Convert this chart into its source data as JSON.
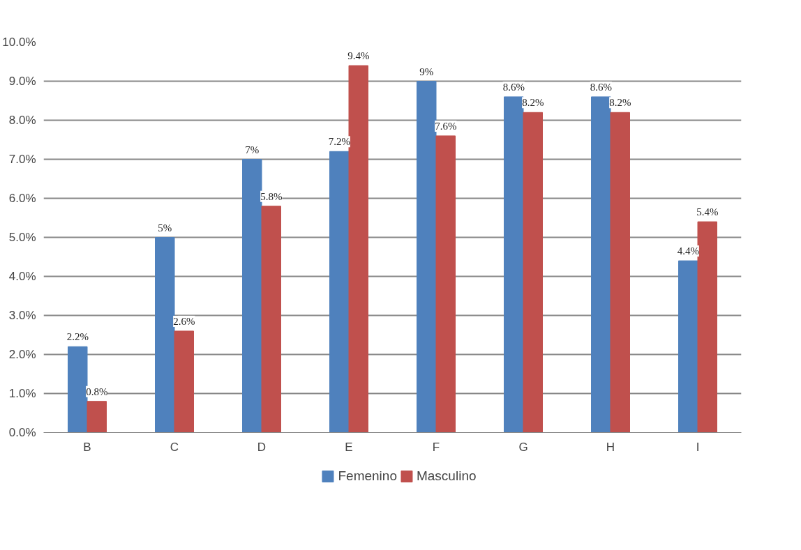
{
  "chart_data": {
    "type": "bar",
    "categories": [
      "B",
      "C",
      "D",
      "E",
      "F",
      "G",
      "H",
      "I"
    ],
    "series": [
      {
        "name": "Femenino",
        "color": "#4f81bd",
        "values": [
          2.2,
          5,
          7,
          7.2,
          9,
          8.6,
          8.6,
          4.4
        ],
        "value_labels": [
          "2.2%",
          "5%",
          "7%",
          "7.2%",
          "9%",
          "8.6%",
          "8.6%",
          "4.4%"
        ]
      },
      {
        "name": "Masculino",
        "color": "#c0504d",
        "values": [
          0.8,
          2.6,
          5.8,
          9.4,
          7.6,
          8.2,
          8.2,
          5.4
        ],
        "value_labels": [
          "0.8%",
          "2.6%",
          "5.8%",
          "9.4%",
          "7.6%",
          "8.2%",
          "8.2%",
          "5.4%"
        ]
      }
    ],
    "ylim": [
      0,
      10
    ],
    "yticks": [
      {
        "value": 0,
        "label": "0.0%"
      },
      {
        "value": 1,
        "label": "1.0%"
      },
      {
        "value": 2,
        "label": "2.0%"
      },
      {
        "value": 3,
        "label": "3.0%"
      },
      {
        "value": 4,
        "label": "4.0%"
      },
      {
        "value": 5,
        "label": "5.0%"
      },
      {
        "value": 6,
        "label": "6.0%"
      },
      {
        "value": 7,
        "label": "7.0%"
      },
      {
        "value": 8,
        "label": "8.0%"
      },
      {
        "value": 9,
        "label": "9.0%"
      },
      {
        "value": 10,
        "label": "10.0%"
      }
    ],
    "grid": "y",
    "legend": "bottom"
  }
}
